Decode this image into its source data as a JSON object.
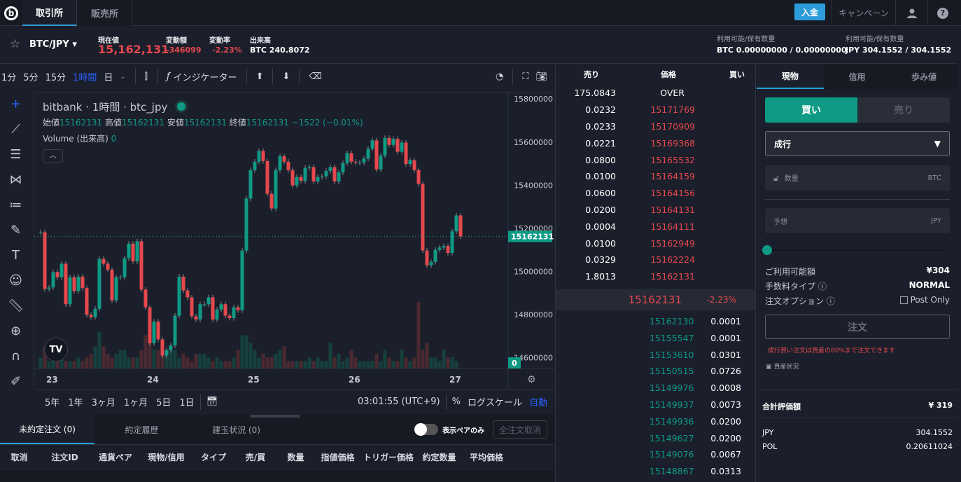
{
  "header": {
    "logo": "b",
    "tabs": [
      "取引所",
      "販売所"
    ],
    "deposit": "入金",
    "campaign": "キャンペーン"
  },
  "ticker": {
    "pair": "BTC/JPY",
    "price_label": "現在値",
    "price": "15,162,131",
    "change_label": "変動額",
    "change": "-346099",
    "rate_label": "変動率",
    "rate": "-2.23%",
    "volume_label": "出来高",
    "volume": "BTC 240.8072",
    "bal1_label": "利用可能/保有数量",
    "bal1": "BTC 0.00000000 / 0.00000000",
    "bal2_label": "利用可能/保有数量",
    "bal2": "JPY 304.1552 / 304.1552"
  },
  "toolbar": {
    "intervals": [
      "1分",
      "5分",
      "15分",
      "1時間",
      "日"
    ],
    "active_interval": "1時間",
    "indicator": "インジケーター"
  },
  "legend": {
    "title": "bitbank · 1時間 · btc_jpy",
    "open_l": "始値",
    "open": "15162131",
    "high_l": "高値",
    "high": "15162131",
    "low_l": "安値",
    "low": "15162131",
    "close_l": "終値",
    "close": "15162131",
    "chg": "−1522 (−0.01%)",
    "vol_l": "Volume (出来高)",
    "vol": "0"
  },
  "chart_data": {
    "type": "candlestick",
    "interval": "1h",
    "ylim": [
      14550000,
      15830000
    ],
    "yticks": [
      15800000,
      15600000,
      15400000,
      15200000,
      15000000,
      14800000,
      14600000
    ],
    "xticks": [
      {
        "label": "23",
        "index": 2
      },
      {
        "label": "24",
        "index": 26
      },
      {
        "label": "25",
        "index": 50
      },
      {
        "label": "26",
        "index": 74
      },
      {
        "label": "27",
        "index": 98
      }
    ],
    "last_price": "15162131",
    "volume_last": "0",
    "first_open": 15182000,
    "closes": [
      15182000,
      14919000,
      14926000,
      14997000,
      14973000,
      15036000,
      14848000,
      14973000,
      14909000,
      14976000,
      14923000,
      14799000,
      14788000,
      14827000,
      15058000,
      15036000,
      15008000,
      14866000,
      14973000,
      14973000,
      15061000,
      15129000,
      15047000,
      15140000,
      14916000,
      14834000,
      14667000,
      14767000,
      14685000,
      14610000,
      14635000,
      14657000,
      14795000,
      14976000,
      14912000,
      14880000,
      14792000,
      14777000,
      14848000,
      14848000,
      14880000,
      14777000,
      14823000,
      14848000,
      14795000,
      14784000,
      14834000,
      14820000,
      15097000,
      15338000,
      15470000,
      15509000,
      15559000,
      15512000,
      15360000,
      15292000,
      15470000,
      15534000,
      15509000,
      15470000,
      15399000,
      15438000,
      15420000,
      15480000,
      15484000,
      15417000,
      15438000,
      15441000,
      15466000,
      15484000,
      15417000,
      15459000,
      15502000,
      15548000,
      15509000,
      15505000,
      15505000,
      15523000,
      15569000,
      15608000,
      15473000,
      15537000,
      15619000,
      15587000,
      15615000,
      15555000,
      15598000,
      15498000,
      15516000,
      15470000,
      15406000,
      15097000,
      15029000,
      15044000,
      15100000,
      15111000,
      15118000,
      15086000,
      15186000,
      15260000,
      15162131
    ],
    "volumes": [
      3,
      6,
      2,
      2,
      2,
      3,
      2,
      2,
      2,
      3,
      2,
      3,
      4,
      6,
      10,
      6,
      4,
      3,
      4,
      5,
      5,
      3,
      3,
      3,
      5,
      9,
      10,
      5,
      5,
      4,
      5,
      5,
      5,
      3,
      4,
      3,
      2,
      4,
      4,
      4,
      3,
      2,
      3,
      2,
      2,
      2,
      3,
      5,
      9,
      9,
      7,
      5,
      3,
      4,
      3,
      3,
      4,
      5,
      6,
      2,
      2,
      2,
      2,
      2,
      3,
      2,
      3,
      2,
      2,
      7,
      3,
      4,
      2,
      3,
      5,
      3,
      2,
      2,
      2,
      2,
      4,
      2,
      5,
      3,
      2,
      2,
      5,
      3,
      2,
      3,
      18,
      5,
      7,
      3,
      3,
      2,
      5,
      3,
      3,
      2,
      0
    ]
  },
  "timeframes": [
    "5年",
    "1年",
    "3ヶ月",
    "1ヶ月",
    "5日",
    "1日"
  ],
  "clock": "03:01:55 (UTC+9)",
  "percent": "%",
  "logscale": "ログスケール",
  "auto": "自動",
  "orderbook": {
    "headers": [
      "売り",
      "価格",
      "買い"
    ],
    "over_qty": "175.0843",
    "over": "OVER",
    "asks": [
      [
        "0.0232",
        "15171769"
      ],
      [
        "0.0233",
        "15170909"
      ],
      [
        "0.0221",
        "15169368"
      ],
      [
        "0.0800",
        "15165532"
      ],
      [
        "0.0100",
        "15164159"
      ],
      [
        "0.0600",
        "15164156"
      ],
      [
        "0.0200",
        "15164131"
      ],
      [
        "0.0004",
        "15164111"
      ],
      [
        "0.0100",
        "15162949"
      ],
      [
        "0.0329",
        "15162224"
      ],
      [
        "1.8013",
        "15162131"
      ]
    ],
    "mid_price": "15162131",
    "mid_rate": "-2.23%",
    "bids": [
      [
        "15162130",
        "0.0001"
      ],
      [
        "15155547",
        "0.0001"
      ],
      [
        "15153610",
        "0.0301"
      ],
      [
        "15150515",
        "0.0726"
      ],
      [
        "15149976",
        "0.0008"
      ],
      [
        "15149937",
        "0.0073"
      ],
      [
        "15149936",
        "0.0200"
      ],
      [
        "15149627",
        "0.0200"
      ],
      [
        "15149076",
        "0.0067"
      ],
      [
        "15148867",
        "0.0313"
      ]
    ]
  },
  "order": {
    "tabs": [
      "現物",
      "信用",
      "歩み値"
    ],
    "buy": "買い",
    "sell": "売り",
    "type": "成行",
    "qty_ph": "数量",
    "qty_unit": "BTC",
    "est_ph": "予想",
    "est_unit": "JPY",
    "slider": 0,
    "avail_l": "ご利用可能額",
    "avail": "¥304",
    "fee_l": "手数料タイプ",
    "fee": "NORMAL",
    "opt_l": "注文オプション",
    "postonly": "Post Only",
    "submit": "注文",
    "warn": "成行買い注文は資産の80%まで注文できます",
    "assets": "資産状況",
    "total_l": "合計評価額",
    "total": "¥ 319",
    "holdings": [
      [
        "JPY",
        "304.1552"
      ],
      [
        "POL",
        "0.20611024"
      ]
    ]
  },
  "bottom": {
    "tabs": [
      "未約定注文 (0)",
      "約定履歴",
      "建玉状況 (0)"
    ],
    "toggle": "表示ペアのみ",
    "cancel_all": "全注文取消",
    "columns": [
      "取消",
      "注文ID",
      "通貨ペア",
      "現物/信用",
      "タイプ",
      "売/買",
      "数量",
      "指値価格",
      "トリガー価格",
      "約定数量",
      "平均価格"
    ]
  }
}
